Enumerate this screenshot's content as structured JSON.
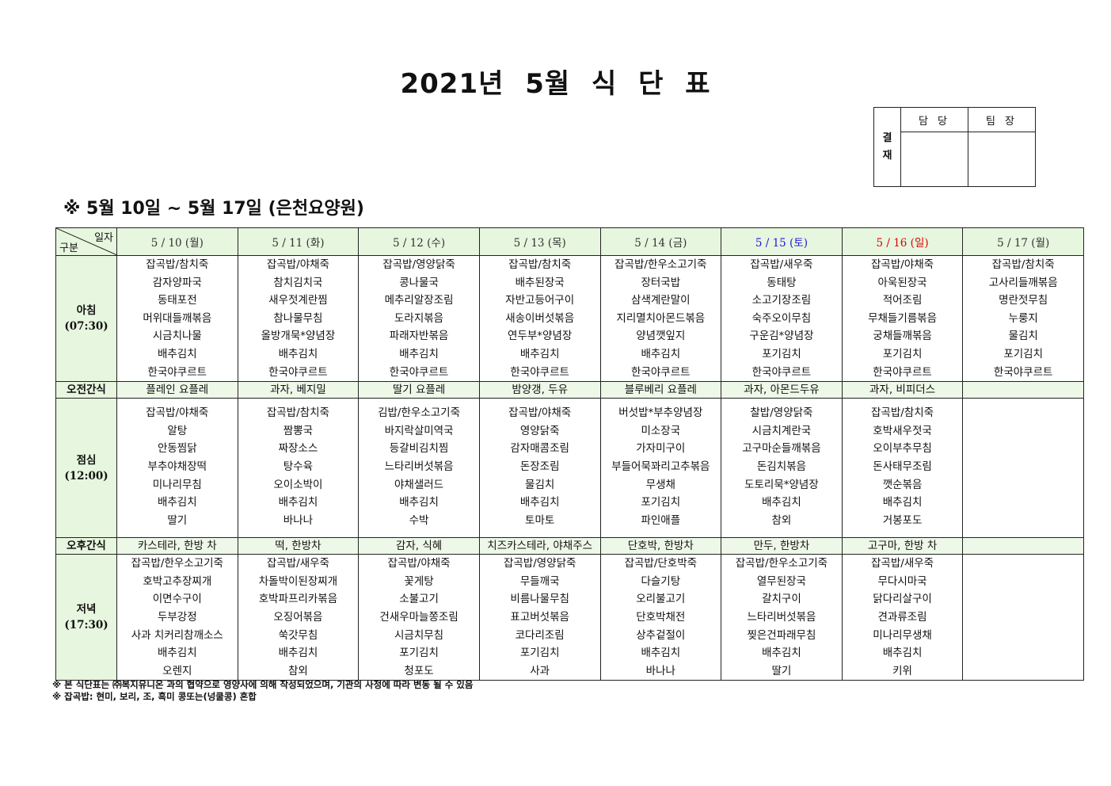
{
  "title": "2021년 5월 식 단 표",
  "approval": {
    "label": "결\n재",
    "label_chars": [
      "결",
      "재"
    ],
    "columns": [
      "담 당",
      "팀 장"
    ]
  },
  "subtitle": "※ 5월 10일 ~ 5월 17일 (은천요양원)",
  "corner": {
    "top": "일자",
    "bottom": "구분"
  },
  "colors": {
    "header_bg": "#e7f6de",
    "saturday": "#1a1adb",
    "sunday": "#e00000",
    "weekday": "#333333"
  },
  "days": [
    {
      "label": "5 / 10 (월)",
      "type": "weekday"
    },
    {
      "label": "5 / 11 (화)",
      "type": "weekday"
    },
    {
      "label": "5 / 12 (수)",
      "type": "weekday"
    },
    {
      "label": "5 / 13 (목)",
      "type": "weekday"
    },
    {
      "label": "5 / 14 (금)",
      "type": "weekday"
    },
    {
      "label": "5 / 15 (토)",
      "type": "saturday"
    },
    {
      "label": "5 / 16 (일)",
      "type": "sunday"
    },
    {
      "label": "5 / 17 (월)",
      "type": "weekday"
    }
  ],
  "rows": {
    "breakfast": {
      "label": "아침",
      "time": "(07:30)",
      "cells": [
        [
          "잡곡밥/참치죽",
          "감자양파국",
          "동태포전",
          "머위대들깨볶음",
          "시금치나물",
          "배추김치",
          "한국야쿠르트"
        ],
        [
          "잡곡밥/야채죽",
          "참치김치국",
          "새우젓계란찜",
          "참나물무침",
          "올방개묵*양념장",
          "배추김치",
          "한국야쿠르트"
        ],
        [
          "잡곡밥/영양닭죽",
          "콩나물국",
          "메추리알장조림",
          "도라지볶음",
          "파래자반볶음",
          "배추김치",
          "한국야쿠르트"
        ],
        [
          "잡곡밥/참치죽",
          "배추된장국",
          "자반고등어구이",
          "새송이버섯볶음",
          "연두부*양념장",
          "배추김치",
          "한국야쿠르트"
        ],
        [
          "잡곡밥/한우소고기죽",
          "장터국밥",
          "삼색계란말이",
          "지리멸치아몬드볶음",
          "양념깻잎지",
          "배추김치",
          "한국야쿠르트"
        ],
        [
          "잡곡밥/새우죽",
          "동태탕",
          "소고기장조림",
          "숙주오이무침",
          "구운김*양념장",
          "포기김치",
          "한국야쿠르트"
        ],
        [
          "잡곡밥/야채죽",
          "아욱된장국",
          "적어조림",
          "무채들기름볶음",
          "궁채들깨볶음",
          "포기김치",
          "한국야쿠르트"
        ],
        [
          "잡곡밥/참치죽",
          "고사리들깨볶음",
          "명란젓무침",
          "누룽지",
          "물김치",
          "포기김치",
          "한국야쿠르트"
        ]
      ]
    },
    "am_snack": {
      "label": "오전간식",
      "cells": [
        "플레인 요플레",
        "과자, 베지밀",
        "딸기 요플레",
        "밤양갱, 두유",
        "블루베리 요플레",
        "과자, 아몬드두유",
        "과자, 비피더스",
        ""
      ]
    },
    "lunch": {
      "label": "점심",
      "time": "(12:00)",
      "cells": [
        [
          "잡곡밥/야채죽",
          "알탕",
          "안동찜닭",
          "부추야채장떡",
          "미나리무침",
          "배추김치",
          "딸기"
        ],
        [
          "잡곡밥/참치죽",
          "짬뽕국",
          "짜장소스",
          "탕수육",
          "오이소박이",
          "배추김치",
          "바나나"
        ],
        [
          "김밥/한우소고기죽",
          "바지락살미역국",
          "등갈비김치찜",
          "느타리버섯볶음",
          "야채샐러드",
          "배추김치",
          "수박"
        ],
        [
          "잡곡밥/야채죽",
          "영양닭죽",
          "감자매콤조림",
          "돈장조림",
          "물김치",
          "배추김치",
          "토마토"
        ],
        [
          "버섯밥*부추양념장",
          "미소장국",
          "가자미구이",
          "부들어묵꽈리고추볶음",
          "무생채",
          "포기김치",
          "파인애플"
        ],
        [
          "찰밥/영양닭죽",
          "시금치계란국",
          "고구마순들깨볶음",
          "돈김치볶음",
          "도토리묵*양념장",
          "배추김치",
          "참외"
        ],
        [
          "잡곡밥/참치죽",
          "호박새우젓국",
          "오이부추무침",
          "돈사태무조림",
          "깻순볶음",
          "배추김치",
          "거봉포도"
        ],
        []
      ]
    },
    "pm_snack": {
      "label": "오후간식",
      "cells": [
        "카스테라, 한방 차",
        "떡, 한방차",
        "감자, 식혜",
        "치즈카스테라, 야채주스",
        "단호박, 한방차",
        "만두, 한방차",
        "고구마, 한방 차",
        ""
      ]
    },
    "dinner": {
      "label": "저녁",
      "time": "(17:30)",
      "cells": [
        [
          "잡곡밥/한우소고기죽",
          "호박고추장찌개",
          "이면수구이",
          "두부강정",
          "사과 치커리참깨소스",
          "배추김치",
          "오렌지"
        ],
        [
          "잡곡밥/새우죽",
          "차돌박이된장찌개",
          "호박파프리카볶음",
          "오징어볶음",
          "쑥갓무침",
          "배추김치",
          "참외"
        ],
        [
          "잡곡밥/야채죽",
          "꽃게탕",
          "소불고기",
          "건새우마늘쫑조림",
          "시금치무침",
          "포기김치",
          "청포도"
        ],
        [
          "잡곡밥/영양닭죽",
          "무들깨국",
          "비름나물무침",
          "표고버섯볶음",
          "코다리조림",
          "포기김치",
          "사과"
        ],
        [
          "잡곡밥/단호박죽",
          "다슬기탕",
          "오리불고기",
          "단호박채전",
          "상추겉절이",
          "배추김치",
          "바나나"
        ],
        [
          "잡곡밥/한우소고기죽",
          "열무된장국",
          "갈치구이",
          "느타리버섯볶음",
          "찢은건파래무침",
          "배추김치",
          "딸기"
        ],
        [
          "잡곡밥/새우죽",
          "무다시마국",
          "닭다리살구이",
          "견과류조림",
          "미나리무생채",
          "배추김치",
          "키위"
        ],
        []
      ]
    }
  },
  "notes": [
    "※ 본 식단표는 ㈜복지유니온 과의 협약으로 영양사에 의해 작성되었으며, 기관의 사정에 따라 변동 될 수 있음",
    "※ 잡곡밥: 현미, 보리, 조, 흑미 콩또는(넝쿨콩) 혼합"
  ]
}
